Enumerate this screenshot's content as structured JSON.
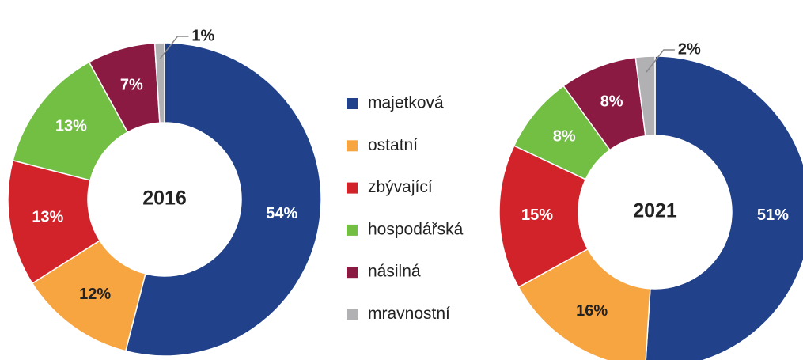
{
  "chart_data": [
    {
      "type": "pie",
      "title": "2016",
      "categories": [
        "majetková",
        "ostatní",
        "zbývající",
        "hospodářská",
        "násilná",
        "mravnostní"
      ],
      "colors": [
        "#21418a",
        "#f7a541",
        "#d2232a",
        "#72bf44",
        "#8b1a42",
        "#b1b1b3"
      ],
      "values": [
        54,
        12,
        13,
        13,
        7,
        1
      ],
      "value_labels": [
        "54%",
        "12%",
        "13%",
        "13%",
        "7%",
        "1%"
      ]
    },
    {
      "type": "pie",
      "title": "2021",
      "values": [
        51,
        16,
        15,
        8,
        8,
        2
      ],
      "value_labels": [
        "51%",
        "16%",
        "15%",
        "8%",
        "8%",
        "2%"
      ]
    }
  ]
}
